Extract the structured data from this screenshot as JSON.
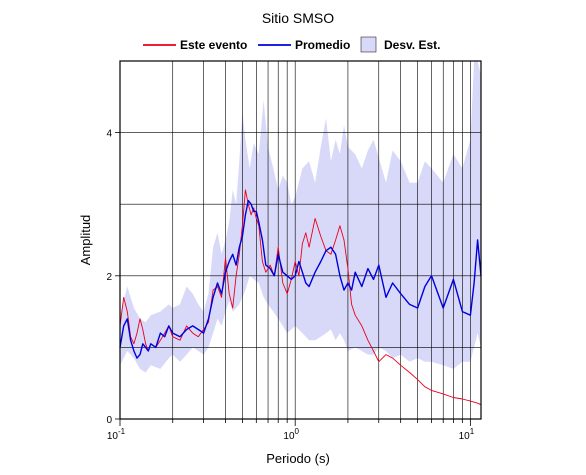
{
  "chart_data": {
    "type": "line",
    "title": "Sitio SMSO",
    "xlabel": "Periodo (s)",
    "ylabel": "Amplitud",
    "x_scale": "log",
    "xlim": [
      0.1,
      11.5
    ],
    "ylim": [
      0,
      5
    ],
    "x_ticks": [
      {
        "value": 0.1,
        "base": "10",
        "exp": "-1"
      },
      {
        "value": 1,
        "base": "10",
        "exp": "0"
      },
      {
        "value": 10,
        "base": "10",
        "exp": "1"
      }
    ],
    "y_ticks": [
      {
        "value": 0,
        "label": "0"
      },
      {
        "value": 2,
        "label": "2"
      },
      {
        "value": 4,
        "label": "4"
      }
    ],
    "y_gridlines": [
      1,
      2,
      3,
      4
    ],
    "x_gridlines": [
      0.2,
      0.3,
      0.4,
      0.5,
      0.6,
      0.7,
      0.8,
      0.9,
      1,
      2,
      3,
      4,
      5,
      6,
      7,
      8,
      9,
      10
    ],
    "grid": true,
    "legend_position": "top",
    "colors": {
      "event": "#e8001c",
      "mean": "#0000dd",
      "band": "#d8d8f8"
    },
    "series": [
      {
        "name": "Este evento",
        "color": "#e8001c",
        "x": [
          0.1,
          0.105,
          0.11,
          0.115,
          0.12,
          0.125,
          0.13,
          0.135,
          0.14,
          0.145,
          0.15,
          0.16,
          0.17,
          0.18,
          0.19,
          0.2,
          0.22,
          0.24,
          0.26,
          0.28,
          0.3,
          0.32,
          0.34,
          0.36,
          0.38,
          0.4,
          0.42,
          0.44,
          0.46,
          0.48,
          0.5,
          0.52,
          0.54,
          0.56,
          0.58,
          0.6,
          0.62,
          0.65,
          0.68,
          0.72,
          0.76,
          0.8,
          0.85,
          0.9,
          0.95,
          1.0,
          1.05,
          1.1,
          1.15,
          1.2,
          1.3,
          1.4,
          1.5,
          1.6,
          1.7,
          1.8,
          1.9,
          2.0,
          2.1,
          2.2,
          2.4,
          2.6,
          2.8,
          3.0,
          3.3,
          3.6,
          4.0,
          4.5,
          5.0,
          5.5,
          6.0,
          7.0,
          8.0,
          9.0,
          10.0,
          11.0,
          11.5
        ],
        "values": [
          1.3,
          1.7,
          1.5,
          1.15,
          1.05,
          1.2,
          1.4,
          1.25,
          1.05,
          0.95,
          1.05,
          1.0,
          1.1,
          1.2,
          1.3,
          1.15,
          1.1,
          1.3,
          1.2,
          1.15,
          1.25,
          1.35,
          1.8,
          1.85,
          1.7,
          2.25,
          1.75,
          1.55,
          2.0,
          2.3,
          2.7,
          3.2,
          3.0,
          2.85,
          2.95,
          2.8,
          2.7,
          2.2,
          2.05,
          2.15,
          2.0,
          2.4,
          1.9,
          1.75,
          1.95,
          2.2,
          2.0,
          2.45,
          2.6,
          2.4,
          2.8,
          2.55,
          2.35,
          2.3,
          2.5,
          2.7,
          2.5,
          2.1,
          1.6,
          1.45,
          1.3,
          1.1,
          0.95,
          0.8,
          0.9,
          0.85,
          0.75,
          0.65,
          0.55,
          0.45,
          0.4,
          0.35,
          0.3,
          0.28,
          0.25,
          0.22,
          0.2
        ]
      },
      {
        "name": "Promedio",
        "color": "#0000dd",
        "x": [
          0.1,
          0.105,
          0.11,
          0.115,
          0.12,
          0.125,
          0.13,
          0.135,
          0.14,
          0.145,
          0.15,
          0.16,
          0.17,
          0.18,
          0.19,
          0.2,
          0.22,
          0.24,
          0.26,
          0.28,
          0.3,
          0.32,
          0.34,
          0.36,
          0.38,
          0.4,
          0.42,
          0.44,
          0.46,
          0.48,
          0.5,
          0.52,
          0.54,
          0.56,
          0.58,
          0.6,
          0.62,
          0.65,
          0.68,
          0.72,
          0.76,
          0.8,
          0.85,
          0.9,
          0.95,
          1.0,
          1.05,
          1.1,
          1.15,
          1.2,
          1.3,
          1.4,
          1.5,
          1.6,
          1.7,
          1.8,
          1.9,
          2.0,
          2.1,
          2.2,
          2.4,
          2.6,
          2.8,
          3.0,
          3.3,
          3.6,
          4.0,
          4.5,
          5.0,
          5.5,
          6.0,
          7.0,
          8.0,
          9.0,
          10.0,
          10.5,
          11.0,
          11.5
        ],
        "values": [
          1.0,
          1.3,
          1.4,
          1.1,
          0.95,
          0.85,
          0.9,
          1.05,
          1.0,
          0.95,
          1.05,
          1.0,
          1.2,
          1.15,
          1.3,
          1.2,
          1.15,
          1.25,
          1.3,
          1.25,
          1.2,
          1.4,
          1.7,
          1.9,
          1.75,
          2.05,
          2.2,
          2.3,
          2.15,
          2.4,
          2.55,
          2.85,
          3.05,
          3.0,
          2.9,
          2.9,
          2.75,
          2.5,
          2.15,
          2.1,
          2.0,
          2.3,
          2.05,
          2.0,
          1.95,
          2.0,
          2.2,
          2.05,
          1.9,
          1.85,
          2.05,
          2.2,
          2.35,
          2.4,
          2.3,
          2.0,
          1.8,
          1.9,
          1.8,
          2.05,
          1.85,
          2.1,
          1.95,
          2.15,
          1.7,
          1.9,
          1.75,
          1.6,
          1.55,
          1.85,
          2.0,
          1.55,
          1.95,
          1.5,
          1.45,
          1.9,
          2.5,
          2.0
        ]
      },
      {
        "name": "Desv. Est.",
        "type": "band",
        "color": "#d8d8f8",
        "x": [
          0.1,
          0.11,
          0.12,
          0.13,
          0.14,
          0.15,
          0.17,
          0.19,
          0.2,
          0.22,
          0.24,
          0.26,
          0.28,
          0.3,
          0.32,
          0.34,
          0.36,
          0.38,
          0.4,
          0.42,
          0.44,
          0.46,
          0.48,
          0.5,
          0.52,
          0.55,
          0.58,
          0.62,
          0.66,
          0.7,
          0.75,
          0.8,
          0.85,
          0.9,
          0.95,
          1.0,
          1.1,
          1.2,
          1.3,
          1.4,
          1.5,
          1.6,
          1.7,
          1.8,
          1.9,
          2.0,
          2.2,
          2.4,
          2.6,
          2.8,
          3.0,
          3.3,
          3.6,
          4.0,
          4.5,
          5.0,
          5.5,
          6.0,
          7.0,
          8.0,
          9.0,
          10.0,
          10.5,
          11.0,
          11.5
        ],
        "upper": [
          1.45,
          1.85,
          1.55,
          1.4,
          1.35,
          1.45,
          1.5,
          1.6,
          1.55,
          1.6,
          1.85,
          1.75,
          1.6,
          1.5,
          1.75,
          2.4,
          2.6,
          2.3,
          2.5,
          2.75,
          3.2,
          3.0,
          3.6,
          4.3,
          3.9,
          3.5,
          3.85,
          3.7,
          4.45,
          3.8,
          3.5,
          3.2,
          3.4,
          3.3,
          3.0,
          3.1,
          3.5,
          3.6,
          3.3,
          3.8,
          4.2,
          3.6,
          3.9,
          3.7,
          4.1,
          3.8,
          3.7,
          3.5,
          3.75,
          3.9,
          3.65,
          3.3,
          3.75,
          3.6,
          3.3,
          3.3,
          3.6,
          3.5,
          3.3,
          3.7,
          3.5,
          3.9,
          5.0,
          5.0,
          4.8
        ],
        "lower": [
          0.75,
          0.95,
          0.85,
          0.7,
          0.65,
          0.75,
          0.7,
          0.85,
          0.9,
          0.8,
          0.9,
          1.0,
          0.95,
          0.9,
          1.0,
          1.2,
          1.4,
          1.3,
          1.5,
          1.65,
          1.5,
          1.55,
          1.6,
          1.7,
          1.8,
          2.0,
          1.95,
          1.9,
          1.7,
          1.6,
          1.5,
          1.4,
          1.3,
          1.2,
          1.25,
          1.3,
          1.2,
          1.1,
          1.1,
          1.15,
          1.2,
          1.25,
          1.1,
          1.2,
          1.1,
          0.95,
          1.0,
          0.95,
          0.9,
          0.9,
          1.0,
          0.95,
          0.85,
          0.9,
          0.8,
          0.85,
          0.8,
          0.8,
          0.75,
          0.7,
          0.8,
          0.8,
          1.0,
          1.2,
          1.0
        ]
      }
    ]
  }
}
